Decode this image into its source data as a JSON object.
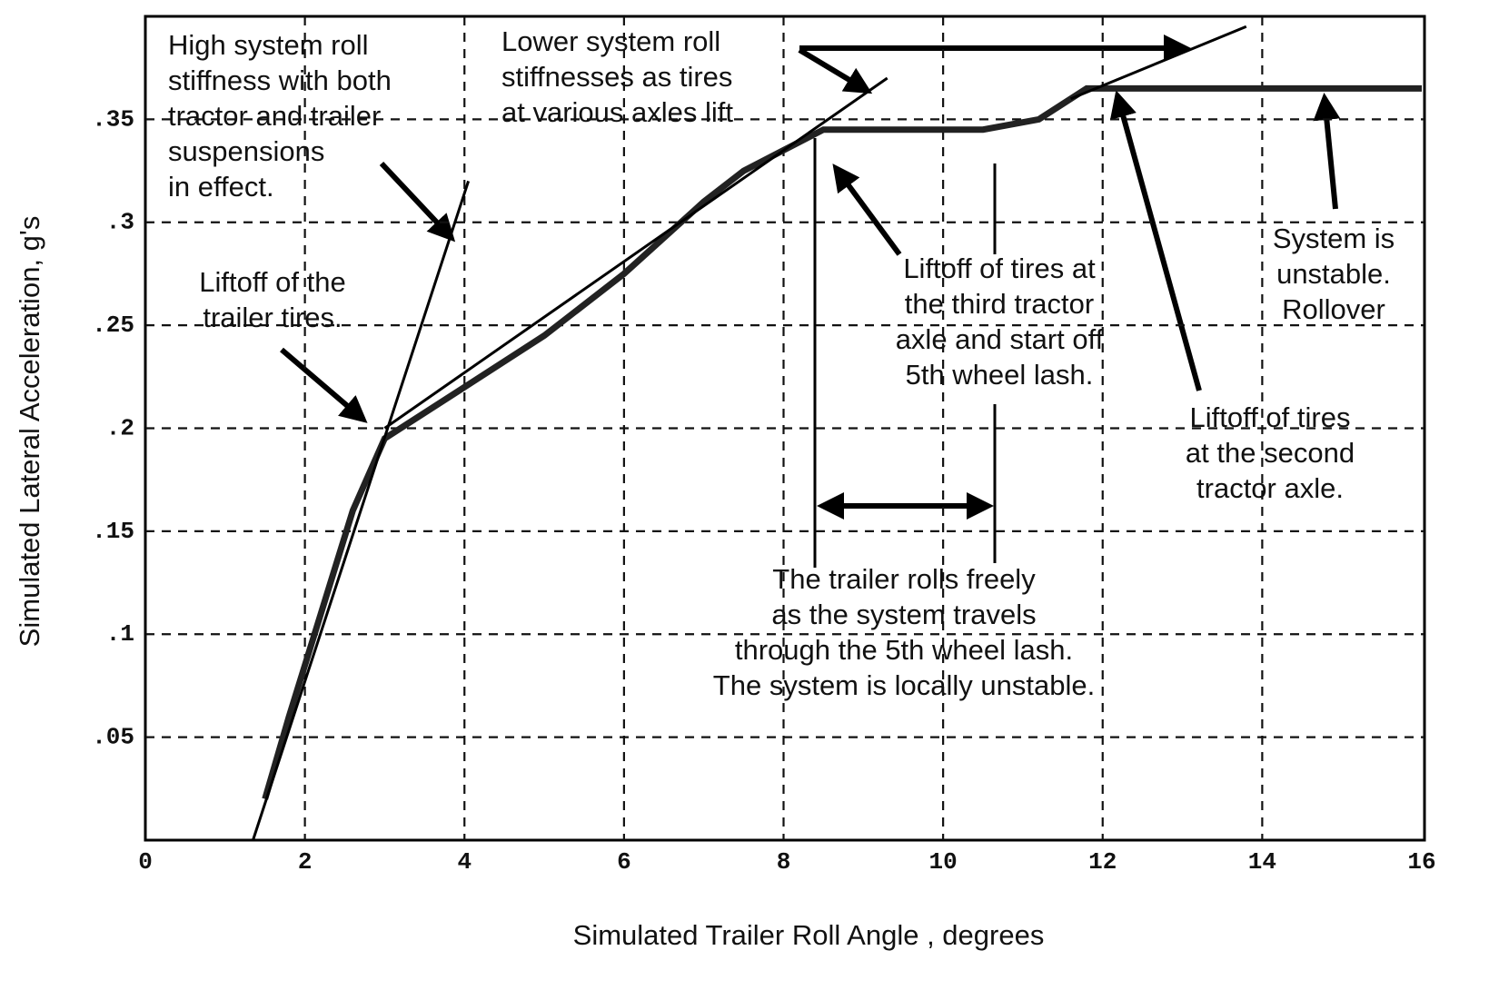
{
  "chart_data": {
    "type": "line",
    "x_label": "Simulated Trailer Roll Angle , degrees",
    "y_label": "Simulated Lateral Acceleration, g's",
    "xlim": [
      0,
      16
    ],
    "ylim": [
      0,
      0.4
    ],
    "xticks": [
      0,
      2,
      4,
      6,
      8,
      10,
      12,
      14,
      16
    ],
    "yticks": [
      {
        "value": 0.05,
        "label": ".05"
      },
      {
        "value": 0.1,
        "label": ".1"
      },
      {
        "value": 0.15,
        "label": ".15"
      },
      {
        "value": 0.2,
        "label": ".2"
      },
      {
        "value": 0.25,
        "label": ".25"
      },
      {
        "value": 0.3,
        "label": ".3"
      },
      {
        "value": 0.35,
        "label": ".35"
      }
    ],
    "grid": true,
    "series": [
      {
        "color": "#222",
        "x": [
          1.5,
          1.8,
          2.2,
          2.6,
          3.0,
          4.0,
          5.0,
          6.0,
          7.0,
          7.5,
          8.0,
          8.5,
          10.5,
          11.2,
          11.8,
          16
        ],
        "values": [
          0.02,
          0.06,
          0.11,
          0.16,
          0.195,
          0.22,
          0.245,
          0.275,
          0.31,
          0.325,
          0.335,
          0.345,
          0.345,
          0.35,
          0.365,
          0.365
        ]
      },
      {
        "color": "#000",
        "x": [
          1.35,
          4.05
        ],
        "values": [
          0,
          0.32
        ]
      },
      {
        "color": "#000",
        "x": [
          3.0,
          9.3
        ],
        "values": [
          0.2,
          0.37
        ]
      },
      {
        "color": "#000",
        "x": [
          11.6,
          13.8
        ],
        "values": [
          0.36,
          0.395
        ]
      }
    ],
    "annotations": [
      [
        "High system roll",
        "stiffness with both",
        "tractor and trailer",
        "suspensions",
        "in effect."
      ],
      [
        "Liftoff of the",
        "trailer tires."
      ],
      [
        "Lower system roll",
        "stiffnesses as  tires",
        "at various axles lift"
      ],
      [
        "Liftoff of tires at",
        "the third tractor",
        "axle and start off",
        "5th wheel lash."
      ],
      [
        "System is",
        "unstable.",
        "Rollover"
      ],
      [
        "Liftoff of tires",
        "at the second",
        "tractor axle."
      ],
      [
        "The trailer rolls freely",
        "as the system travels",
        "through the 5th wheel lash.",
        "The system is locally unstable."
      ]
    ]
  }
}
